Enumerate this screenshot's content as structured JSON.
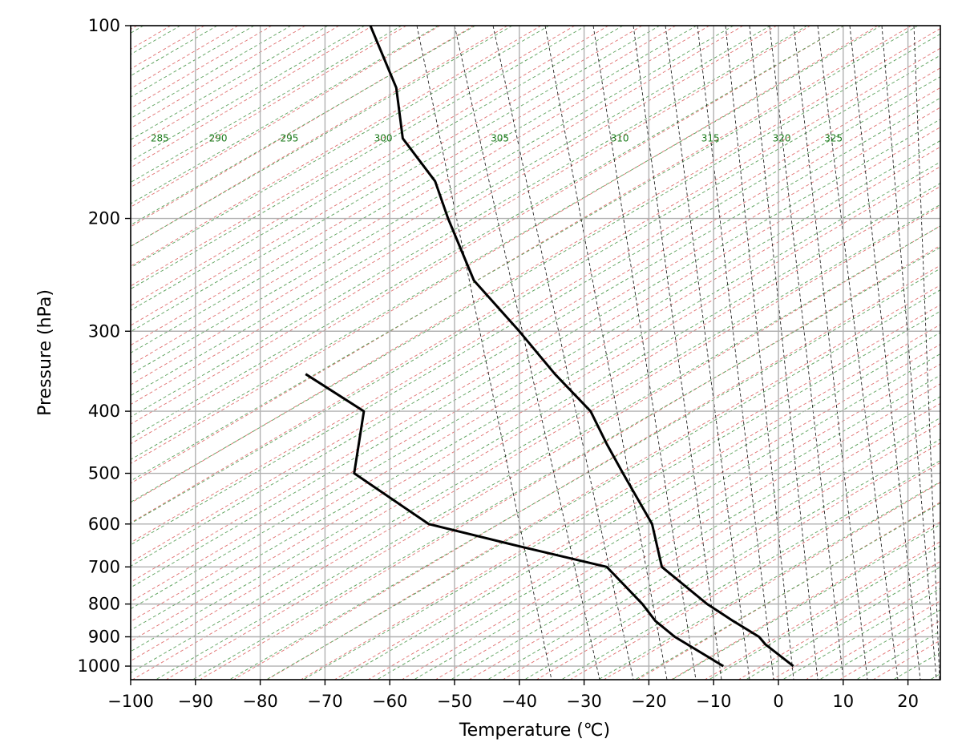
{
  "chart_data": {
    "type": "line",
    "title": "",
    "xlabel": "Temperature (℃)",
    "ylabel": "Pressure (hPa)",
    "xlim": [
      -100,
      25
    ],
    "ylim": [
      1050,
      100
    ],
    "y_scale": "log",
    "grid": true,
    "x_ticks": [
      -100,
      -90,
      -80,
      -70,
      -60,
      -50,
      -40,
      -30,
      -20,
      -10,
      0,
      10,
      20
    ],
    "x_tick_labels": [
      "−100",
      "−90",
      "−80",
      "−70",
      "−60",
      "−50",
      "−40",
      "−30",
      "−20",
      "−10",
      "0",
      "10",
      "20"
    ],
    "y_ticks": [
      100,
      200,
      300,
      400,
      500,
      600,
      700,
      800,
      900,
      1000
    ],
    "y_tick_labels": [
      "100",
      "200",
      "300",
      "400",
      "500",
      "600",
      "700",
      "800",
      "900",
      "1000"
    ],
    "potential_temperature_labels": {
      "pressure": 150,
      "entries": [
        {
          "label": "285",
          "temp": -95.5
        },
        {
          "label": "290",
          "temp": -86.5
        },
        {
          "label": "295",
          "temp": -75.5
        },
        {
          "label": "300",
          "temp": -61
        },
        {
          "label": "305",
          "temp": -43
        },
        {
          "label": "310",
          "temp": -24.5
        },
        {
          "label": "315",
          "temp": -10.5
        },
        {
          "label": "320",
          "temp": 0.5
        },
        {
          "label": "325",
          "temp": 8.5
        }
      ]
    },
    "background_lines": {
      "dry_adiabats": {
        "color": "#e07070",
        "style": "dashed"
      },
      "moist_adiabats": {
        "color": "#5aa05a",
        "style": "dashed"
      },
      "mixing_ratio": {
        "color": "#222222",
        "style": "dashed"
      }
    },
    "series": [
      {
        "color": "#000000",
        "points": [
          {
            "p": 1000,
            "t": 2.3
          },
          {
            "p": 925,
            "t": -2
          },
          {
            "p": 900,
            "t": -3
          },
          {
            "p": 850,
            "t": -7
          },
          {
            "p": 800,
            "t": -11
          },
          {
            "p": 700,
            "t": -18
          },
          {
            "p": 600,
            "t": -19.5
          },
          {
            "p": 500,
            "t": -24
          },
          {
            "p": 450,
            "t": -26.5
          },
          {
            "p": 400,
            "t": -29
          },
          {
            "p": 350,
            "t": -34.5
          },
          {
            "p": 300,
            "t": -40
          },
          {
            "p": 250,
            "t": -47
          },
          {
            "p": 200,
            "t": -51
          },
          {
            "p": 175,
            "t": -53
          },
          {
            "p": 150,
            "t": -58
          },
          {
            "p": 125,
            "t": -59
          },
          {
            "p": 100,
            "t": -63
          }
        ]
      },
      {
        "color": "#000000",
        "points": [
          {
            "p": 1000,
            "t": -8.5
          },
          {
            "p": 900,
            "t": -16
          },
          {
            "p": 850,
            "t": -19
          },
          {
            "p": 800,
            "t": -21
          },
          {
            "p": 700,
            "t": -26.5
          },
          {
            "p": 650,
            "t": -40
          },
          {
            "p": 600,
            "t": -54
          },
          {
            "p": 500,
            "t": -65.5
          },
          {
            "p": 400,
            "t": -64
          },
          {
            "p": 350,
            "t": -73
          }
        ]
      }
    ]
  }
}
